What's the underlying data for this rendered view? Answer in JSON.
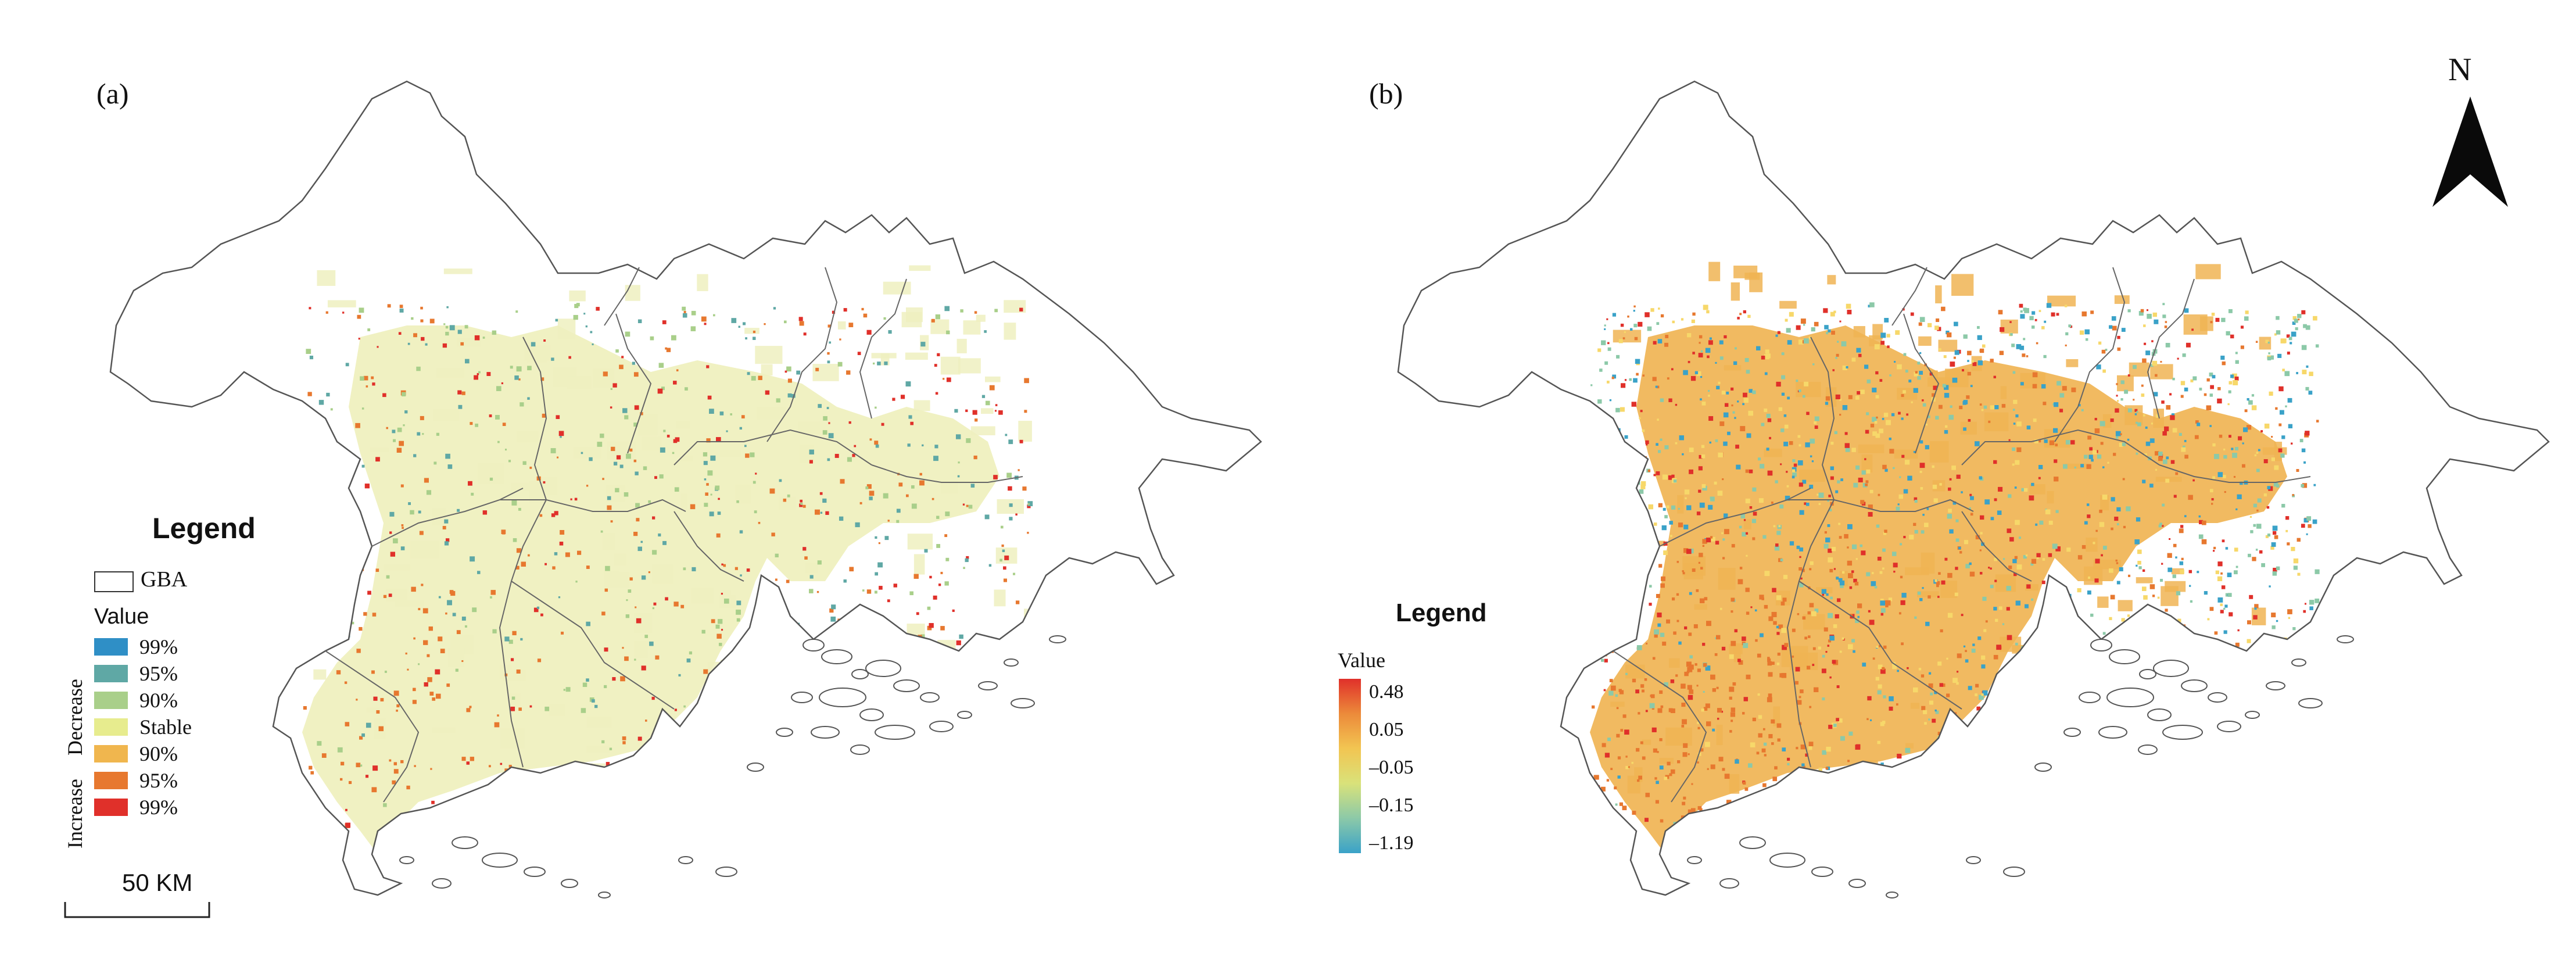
{
  "panels": [
    {
      "id": "a",
      "label": "(a)",
      "legend": {
        "title": "Legend",
        "boundary_label": "GBA",
        "value_title": "Value",
        "group_decrease": "Decrease",
        "group_increase": "Increase",
        "classes": [
          {
            "label": "99%",
            "color": "#2f8fc6"
          },
          {
            "label": "95%",
            "color": "#5fa8a5"
          },
          {
            "label": "90%",
            "color": "#a9cf8a"
          },
          {
            "label": "Stable",
            "color": "#e7ec8e"
          },
          {
            "label": "90%",
            "color": "#f0b64e"
          },
          {
            "label": "95%",
            "color": "#e7782f"
          },
          {
            "label": "99%",
            "color": "#e0302a"
          }
        ]
      },
      "scalebar_label": "50 KM",
      "dominant_fill": "#eff0bf",
      "speckle_colors": [
        "#e7782f",
        "#e0302a",
        "#a9cf8a",
        "#5fa8a5"
      ]
    },
    {
      "id": "b",
      "label": "(b)",
      "legend": {
        "title": "Legend",
        "value_title": "Value",
        "ramp_ticks": [
          "0.48",
          "0.05",
          "–0.05",
          "–0.15",
          "–1.19"
        ],
        "ramp_colors": [
          "#e0302a",
          "#ec8a3a",
          "#f2c552",
          "#d9e27a",
          "#8cc9a8",
          "#3aa2c8"
        ]
      },
      "north_label": "N",
      "dominant_fill": "#f0b454",
      "speckle_colors": [
        "#e7782f",
        "#e0302a",
        "#f7d86a",
        "#8cc9a8",
        "#3aa2c8"
      ]
    }
  ]
}
